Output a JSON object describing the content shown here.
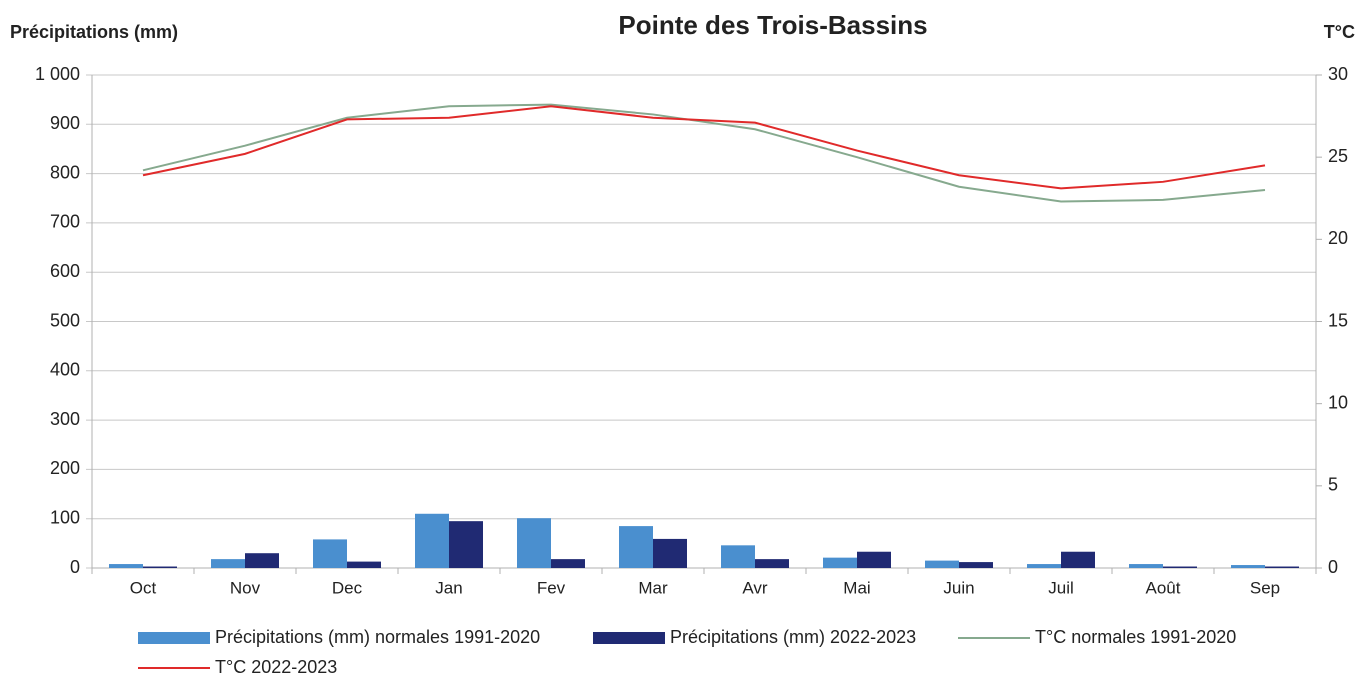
{
  "chart_data": {
    "type": "bar-line",
    "title": "Pointe des Trois-Bassins",
    "y_label": "Précipitations (mm)",
    "y2_label": "T°C",
    "categories": [
      "Oct",
      "Nov",
      "Dec",
      "Jan",
      "Fev",
      "Mar",
      "Avr",
      "Mai",
      "Juin",
      "Juil",
      "Août",
      "Sep"
    ],
    "ylim": [
      0,
      1000
    ],
    "yticks": [
      0,
      100,
      200,
      300,
      400,
      500,
      600,
      700,
      800,
      900,
      {
        "value": 1000,
        "label": "1 000"
      }
    ],
    "y2lim": [
      0,
      30
    ],
    "y2ticks": [
      0,
      5,
      10,
      15,
      20,
      25,
      30
    ],
    "grid": true,
    "legend": "bottom",
    "series": [
      {
        "name": "Précipitations (mm) normales 1991-2020",
        "type": "bar",
        "color": "#4a8fcf",
        "values": [
          8,
          18,
          58,
          110,
          101,
          85,
          46,
          21,
          15,
          8,
          8,
          6
        ]
      },
      {
        "name": "Précipitations (mm) 2022-2023",
        "type": "bar",
        "color": "#202a73",
        "values": [
          3,
          30,
          13,
          95,
          18,
          59,
          18,
          33,
          12,
          33,
          3,
          3
        ]
      },
      {
        "name": "T°C normales 1991-2020",
        "type": "line",
        "axis": "y2",
        "color": "#86a98e",
        "values": [
          24.2,
          25.7,
          27.4,
          28.1,
          28.2,
          27.6,
          26.7,
          25.0,
          23.2,
          22.3,
          22.4,
          23.0
        ]
      },
      {
        "name": "T°C 2022-2023",
        "type": "line",
        "axis": "y2",
        "color": "#e02a2a",
        "values": [
          23.9,
          25.2,
          27.3,
          27.4,
          28.1,
          27.4,
          27.1,
          25.4,
          23.9,
          23.1,
          23.5,
          24.5
        ]
      }
    ]
  }
}
